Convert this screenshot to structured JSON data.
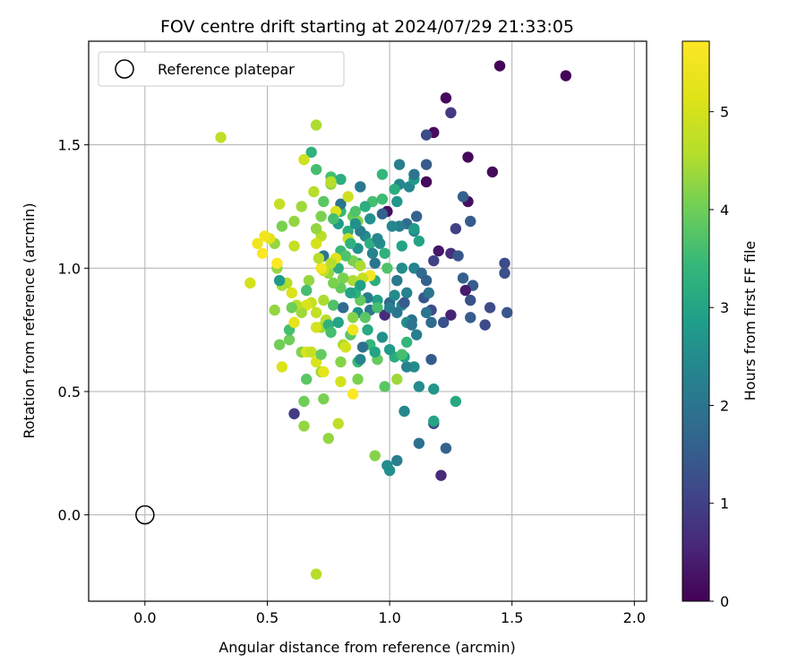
{
  "chart_data": {
    "type": "scatter",
    "title": "FOV centre drift starting at 2024/07/29 21:33:05",
    "xlabel": "Angular distance from reference (arcmin)",
    "ylabel": "Rotation from reference (arcmin)",
    "xlim": [
      -0.23,
      2.05
    ],
    "ylim": [
      -0.35,
      1.92
    ],
    "xticks": [
      "0.0",
      "0.5",
      "1.0",
      "1.5",
      "2.0"
    ],
    "xtick_values": [
      0.0,
      0.5,
      1.0,
      1.5,
      2.0
    ],
    "yticks": [
      "0.0",
      "0.5",
      "1.0",
      "1.5"
    ],
    "ytick_values": [
      0.0,
      0.5,
      1.0,
      1.5
    ],
    "grid": true,
    "legend": {
      "placement": "top-left",
      "entries": [
        {
          "label": "Reference platepar",
          "marker": "open-circle"
        }
      ]
    },
    "reference_point": {
      "x": 0.0,
      "y": 0.0
    },
    "colorbar": {
      "label": "Hours from first FF file",
      "colormap": "viridis",
      "range": [
        0,
        5.72
      ],
      "ticks": [
        "0",
        "1",
        "2",
        "3",
        "4",
        "5"
      ],
      "tick_values": [
        0,
        1,
        2,
        3,
        4,
        5
      ]
    },
    "points": [
      [
        1.45,
        1.82,
        0.05
      ],
      [
        1.72,
        1.78,
        0.05
      ],
      [
        1.23,
        1.69,
        0.1
      ],
      [
        1.25,
        1.63,
        0.9
      ],
      [
        1.18,
        1.55,
        0.15
      ],
      [
        1.15,
        1.54,
        1.2
      ],
      [
        1.32,
        1.45,
        0.1
      ],
      [
        1.42,
        1.39,
        0.15
      ],
      [
        1.15,
        1.42,
        1.5
      ],
      [
        1.15,
        1.35,
        0.1
      ],
      [
        1.32,
        1.27,
        0.2
      ],
      [
        1.3,
        1.29,
        1.6
      ],
      [
        0.99,
        1.23,
        0.2
      ],
      [
        1.33,
        1.19,
        1.5
      ],
      [
        1.27,
        1.16,
        1.0
      ],
      [
        1.2,
        1.07,
        0.3
      ],
      [
        1.25,
        1.06,
        0.7
      ],
      [
        1.18,
        1.03,
        1.0
      ],
      [
        1.28,
        1.05,
        1.4
      ],
      [
        1.47,
        1.02,
        1.2
      ],
      [
        1.47,
        0.98,
        1.3
      ],
      [
        1.3,
        0.96,
        1.6
      ],
      [
        1.34,
        0.93,
        1.5
      ],
      [
        1.31,
        0.91,
        0.4
      ],
      [
        1.33,
        0.87,
        1.3
      ],
      [
        1.41,
        0.84,
        1.2
      ],
      [
        1.48,
        0.82,
        1.4
      ],
      [
        1.33,
        0.8,
        1.5
      ],
      [
        1.25,
        0.81,
        0.5
      ],
      [
        1.22,
        0.78,
        1.3
      ],
      [
        1.39,
        0.77,
        1.2
      ],
      [
        1.17,
        0.83,
        1.2
      ],
      [
        1.14,
        0.88,
        1.4
      ],
      [
        1.17,
        0.63,
        1.5
      ],
      [
        1.23,
        0.27,
        1.6
      ],
      [
        1.21,
        0.16,
        0.6
      ],
      [
        1.18,
        0.37,
        1.2
      ],
      [
        1.12,
        0.29,
        1.9
      ],
      [
        1.03,
        0.22,
        2.2
      ],
      [
        1.0,
        0.18,
        2.6
      ],
      [
        0.99,
        0.2,
        2.5
      ],
      [
        1.06,
        0.42,
        2.4
      ],
      [
        1.12,
        0.52,
        2.5
      ],
      [
        1.18,
        0.51,
        2.7
      ],
      [
        1.27,
        0.46,
        3.1
      ],
      [
        1.18,
        0.38,
        3.0
      ],
      [
        1.1,
        0.6,
        2.5
      ],
      [
        1.07,
        0.6,
        2.3
      ],
      [
        1.06,
        0.64,
        2.9
      ],
      [
        1.02,
        0.64,
        3.2
      ],
      [
        1.0,
        0.67,
        2.8
      ],
      [
        1.11,
        0.73,
        2.2
      ],
      [
        1.09,
        0.79,
        1.9
      ],
      [
        1.05,
        0.85,
        2.5
      ],
      [
        1.03,
        0.82,
        2.0
      ],
      [
        0.98,
        0.81,
        0.6
      ],
      [
        1.0,
        0.86,
        1.7
      ],
      [
        1.02,
        0.89,
        2.5
      ],
      [
        1.07,
        0.9,
        2.3
      ],
      [
        1.03,
        0.95,
        2.1
      ],
      [
        1.05,
        1.0,
        2.5
      ],
      [
        1.1,
        1.0,
        2.3
      ],
      [
        1.13,
        0.98,
        1.8
      ],
      [
        1.12,
        1.11,
        3.0
      ],
      [
        1.1,
        1.15,
        2.3
      ],
      [
        1.11,
        1.21,
        1.6
      ],
      [
        1.07,
        1.18,
        1.8
      ],
      [
        1.04,
        1.17,
        2.2
      ],
      [
        1.03,
        1.27,
        2.7
      ],
      [
        1.08,
        1.33,
        2.4
      ],
      [
        1.1,
        1.36,
        2.8
      ],
      [
        1.1,
        1.38,
        2.0
      ],
      [
        1.04,
        1.34,
        2.4
      ],
      [
        1.02,
        1.32,
        3.2
      ],
      [
        1.04,
        1.42,
        2.2
      ],
      [
        0.97,
        1.38,
        3.4
      ],
      [
        0.88,
        1.33,
        2.1
      ],
      [
        0.93,
        1.27,
        3.6
      ],
      [
        0.97,
        1.28,
        3.5
      ],
      [
        0.97,
        1.22,
        1.6
      ],
      [
        0.92,
        1.2,
        2.6
      ],
      [
        0.85,
        1.21,
        3.9
      ],
      [
        0.87,
        1.19,
        4.2
      ],
      [
        0.8,
        1.23,
        3.4
      ],
      [
        0.79,
        1.18,
        2.8
      ],
      [
        0.86,
        1.23,
        3.7
      ],
      [
        0.8,
        1.26,
        2.0
      ],
      [
        0.76,
        1.34,
        4.3
      ],
      [
        0.76,
        1.37,
        3.6
      ],
      [
        0.8,
        1.36,
        3.2
      ],
      [
        0.7,
        1.4,
        3.6
      ],
      [
        0.68,
        1.47,
        3.3
      ],
      [
        0.7,
        1.58,
        4.5
      ],
      [
        0.65,
        1.44,
        4.9
      ],
      [
        0.69,
        1.31,
        4.6
      ],
      [
        0.73,
        1.27,
        3.8
      ],
      [
        0.76,
        1.35,
        4.6
      ],
      [
        0.83,
        1.29,
        4.9
      ],
      [
        0.78,
        1.23,
        5.1
      ],
      [
        0.77,
        1.2,
        3.6
      ],
      [
        0.83,
        1.15,
        3.2
      ],
      [
        0.83,
        1.12,
        4.8
      ],
      [
        0.87,
        1.08,
        2.6
      ],
      [
        0.87,
        1.02,
        3.4
      ],
      [
        0.9,
        1.13,
        2.5
      ],
      [
        0.92,
        1.1,
        3.2
      ],
      [
        0.93,
        1.06,
        2.3
      ],
      [
        0.94,
        1.02,
        2.0
      ],
      [
        0.96,
        1.1,
        2.5
      ],
      [
        0.98,
        1.06,
        3.3
      ],
      [
        0.99,
        1.0,
        3.7
      ],
      [
        0.94,
        0.95,
        3.2
      ],
      [
        0.95,
        0.87,
        2.9
      ],
      [
        0.91,
        0.88,
        2.2
      ],
      [
        0.92,
        0.83,
        2.0
      ],
      [
        0.95,
        0.84,
        3.6
      ],
      [
        0.97,
        0.72,
        2.6
      ],
      [
        0.92,
        0.69,
        3.4
      ],
      [
        0.95,
        0.63,
        3.9
      ],
      [
        0.98,
        0.52,
        3.8
      ],
      [
        0.94,
        0.24,
        4.2
      ],
      [
        1.03,
        0.55,
        4.4
      ],
      [
        1.05,
        0.65,
        3.6
      ],
      [
        1.07,
        0.7,
        3.4
      ],
      [
        0.87,
        0.62,
        3.5
      ],
      [
        0.87,
        0.55,
        4.1
      ],
      [
        0.8,
        0.54,
        5.0
      ],
      [
        0.8,
        0.62,
        4.2
      ],
      [
        0.85,
        0.75,
        4.5
      ],
      [
        0.87,
        0.82,
        2.6
      ],
      [
        0.85,
        0.8,
        4.2
      ],
      [
        0.88,
        0.87,
        3.9
      ],
      [
        0.86,
        0.9,
        3.3
      ],
      [
        0.85,
        0.95,
        4.5
      ],
      [
        0.85,
        1.03,
        4.1
      ],
      [
        0.88,
        1.01,
        4.5
      ],
      [
        0.92,
        0.97,
        5.6
      ],
      [
        0.89,
        0.96,
        4.8
      ],
      [
        0.81,
        0.96,
        4.1
      ],
      [
        0.79,
        1.0,
        3.2
      ],
      [
        0.8,
        0.92,
        3.9
      ],
      [
        0.77,
        0.94,
        4.1
      ],
      [
        0.75,
        0.98,
        4.3
      ],
      [
        0.73,
        0.99,
        4.8
      ],
      [
        0.73,
        1.05,
        2.0
      ],
      [
        0.72,
        1.0,
        5.5
      ],
      [
        0.71,
        1.04,
        4.6
      ],
      [
        0.72,
        1.13,
        4.6
      ],
      [
        0.7,
        1.16,
        4.3
      ],
      [
        0.72,
        1.21,
        4.1
      ],
      [
        0.7,
        1.1,
        5.0
      ],
      [
        0.67,
        0.95,
        4.3
      ],
      [
        0.66,
        0.91,
        3.6
      ],
      [
        0.68,
        0.86,
        4.8
      ],
      [
        0.66,
        0.85,
        5.1
      ],
      [
        0.64,
        0.82,
        4.4
      ],
      [
        0.62,
        0.85,
        4.6
      ],
      [
        0.6,
        0.9,
        5.1
      ],
      [
        0.6,
        0.84,
        4.0
      ],
      [
        0.58,
        0.94,
        4.6
      ],
      [
        0.56,
        0.93,
        4.5
      ],
      [
        0.55,
        0.95,
        2.8
      ],
      [
        0.54,
        1.0,
        4.3
      ],
      [
        0.54,
        1.02,
        5.7
      ],
      [
        0.53,
        1.1,
        4.3
      ],
      [
        0.51,
        1.12,
        5.2
      ],
      [
        0.49,
        1.13,
        5.5
      ],
      [
        0.48,
        1.06,
        5.7
      ],
      [
        0.46,
        1.1,
        5.5
      ],
      [
        0.43,
        0.94,
        5.0
      ],
      [
        0.31,
        1.53,
        4.7
      ],
      [
        0.55,
        1.26,
        4.8
      ],
      [
        0.56,
        1.17,
        4.1
      ],
      [
        0.61,
        1.19,
        4.3
      ],
      [
        0.64,
        1.25,
        4.4
      ],
      [
        0.61,
        1.09,
        4.8
      ],
      [
        0.53,
        0.83,
        4.3
      ],
      [
        0.55,
        0.69,
        4.0
      ],
      [
        0.59,
        0.71,
        4.0
      ],
      [
        0.59,
        0.75,
        3.6
      ],
      [
        0.61,
        0.78,
        5.3
      ],
      [
        0.64,
        0.66,
        4.2
      ],
      [
        0.66,
        0.66,
        5.1
      ],
      [
        0.68,
        0.66,
        4.8
      ],
      [
        0.7,
        0.62,
        5.1
      ],
      [
        0.72,
        0.65,
        3.9
      ],
      [
        0.72,
        0.76,
        4.4
      ],
      [
        0.74,
        0.79,
        4.6
      ],
      [
        0.75,
        0.77,
        3.3
      ],
      [
        0.77,
        0.85,
        3.7
      ],
      [
        0.73,
        0.87,
        4.5
      ],
      [
        0.7,
        0.82,
        4.8
      ],
      [
        0.7,
        0.76,
        5.0
      ],
      [
        0.72,
        0.58,
        4.4
      ],
      [
        0.73,
        0.58,
        5.3
      ],
      [
        0.73,
        0.47,
        4.1
      ],
      [
        0.66,
        0.55,
        3.8
      ],
      [
        0.65,
        0.46,
        4.0
      ],
      [
        0.56,
        0.6,
        5.1
      ],
      [
        0.61,
        0.41,
        0.9
      ],
      [
        0.65,
        0.36,
        4.3
      ],
      [
        0.75,
        0.31,
        4.3
      ],
      [
        0.79,
        0.37,
        4.7
      ],
      [
        0.81,
        0.69,
        4.5
      ],
      [
        0.82,
        0.68,
        5.0
      ],
      [
        0.84,
        0.73,
        3.8
      ],
      [
        0.85,
        0.75,
        5.5
      ],
      [
        0.85,
        0.49,
        5.7
      ],
      [
        0.7,
        -0.24,
        4.6
      ],
      [
        0.76,
        0.74,
        3.6
      ],
      [
        0.79,
        0.78,
        3.0
      ],
      [
        0.81,
        0.84,
        1.8
      ],
      [
        0.84,
        0.9,
        3.0
      ],
      [
        0.88,
        0.93,
        2.9
      ],
      [
        0.9,
        0.8,
        3.8
      ],
      [
        0.91,
        0.75,
        3.1
      ],
      [
        0.89,
        0.68,
        1.9
      ],
      [
        0.88,
        0.63,
        2.3
      ],
      [
        0.94,
        0.66,
        3.0
      ],
      [
        1.0,
        0.84,
        2.2
      ],
      [
        1.06,
        0.86,
        1.5
      ],
      [
        1.07,
        0.78,
        2.5
      ],
      [
        1.09,
        0.77,
        2.0
      ],
      [
        1.15,
        0.82,
        2.0
      ],
      [
        1.17,
        0.78,
        1.8
      ],
      [
        1.16,
        0.9,
        2.0
      ],
      [
        1.15,
        0.95,
        1.6
      ],
      [
        1.1,
        1.16,
        2.8
      ],
      [
        1.05,
        1.09,
        3.0
      ],
      [
        1.01,
        1.17,
        2.4
      ],
      [
        0.95,
        1.12,
        2.4
      ],
      [
        0.9,
        1.25,
        3.2
      ],
      [
        0.88,
        1.15,
        2.2
      ],
      [
        0.86,
        1.18,
        2.6
      ],
      [
        0.84,
        1.1,
        3.3
      ],
      [
        0.8,
        1.07,
        3.5
      ],
      [
        0.82,
        1.05,
        3.7
      ],
      [
        0.78,
        1.04,
        5.2
      ],
      [
        0.76,
        1.02,
        4.6
      ]
    ]
  }
}
